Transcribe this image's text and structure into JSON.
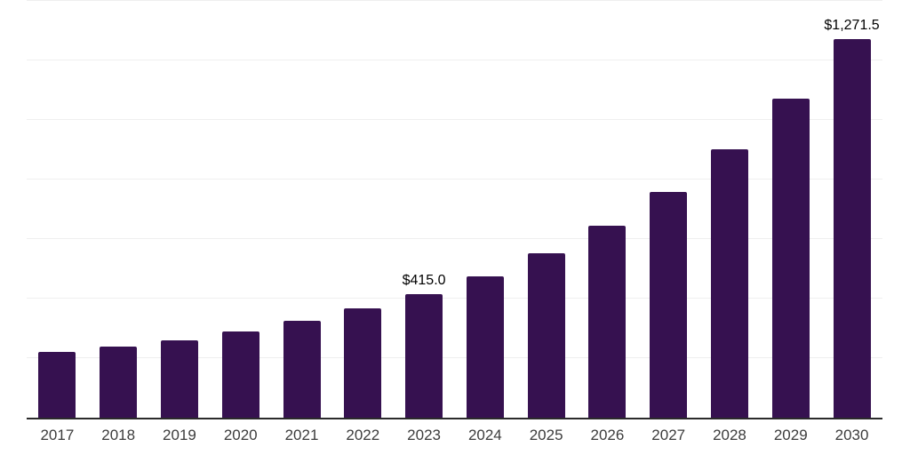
{
  "chart_data": {
    "type": "bar",
    "title": "",
    "xlabel": "",
    "ylabel": "",
    "categories": [
      "2017",
      "2018",
      "2019",
      "2020",
      "2021",
      "2022",
      "2023",
      "2024",
      "2025",
      "2026",
      "2027",
      "2028",
      "2029",
      "2030"
    ],
    "values": [
      221.0,
      239.0,
      259.5,
      289.5,
      326.0,
      367.0,
      415.0,
      475.0,
      553.5,
      645.0,
      758.0,
      901.0,
      1071.0,
      1271.5
    ],
    "data_labels": [
      {
        "category": "2023",
        "text": "$415.0"
      },
      {
        "category": "2030",
        "text": "$1,271.5"
      }
    ],
    "ylim": [
      0,
      1400
    ],
    "gridline_step": 200,
    "grid": true,
    "legend_position": "none",
    "y_axis_tick_labels_visible": false,
    "colors": {
      "bar": "#361150",
      "axis_line": "#2b2b2b",
      "gridline": "#efefef",
      "x_tick_label": "#3c3c3c",
      "data_label": "#000000",
      "background": "#ffffff"
    }
  }
}
